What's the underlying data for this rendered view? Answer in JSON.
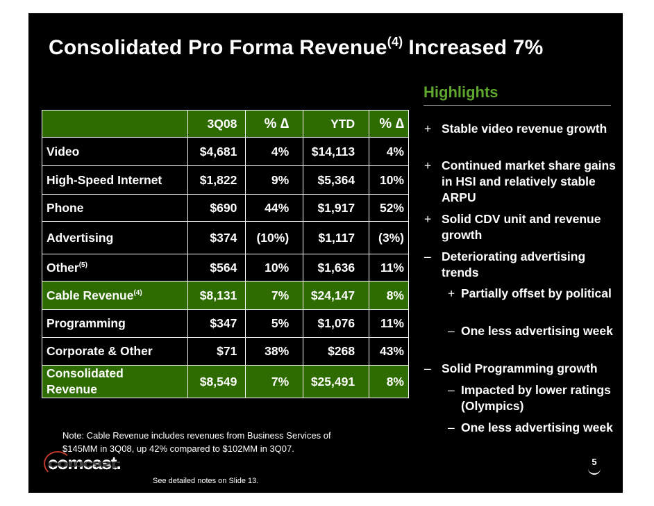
{
  "title": {
    "part1": "Consolidated Pro Forma Revenue",
    "sup": "(4)",
    "part2": "Increased 7%"
  },
  "table": {
    "headers": {
      "c1": "3Q08",
      "c2": "% ∆",
      "c3": "YTD",
      "c4": "% ∆"
    },
    "rows": [
      {
        "label": "Video",
        "sup": "",
        "c1": "$4,681",
        "c2": "4%",
        "c3": "$14,113",
        "c4": "4%"
      },
      {
        "label": "High-Speed Internet",
        "sup": "",
        "c1": "$1,822",
        "c2": "9%",
        "c3": "$5,364",
        "c4": "10%"
      },
      {
        "label": "Phone",
        "sup": "",
        "c1": "$690",
        "c2": "44%",
        "c3": "$1,917",
        "c4": "52%"
      },
      {
        "label": "Advertising",
        "sup": "",
        "c1": "$374",
        "c2": "(10%)",
        "c3": "$1,117",
        "c4": "(3%)"
      },
      {
        "label": "Other",
        "sup": "(5)",
        "c1": "$564",
        "c2": "10%",
        "c3": "$1,636",
        "c4": "11%"
      },
      {
        "label": "Cable Revenue",
        "sup": "(4)",
        "c1": "$8,131",
        "c2": "7%",
        "c3": "$24,147",
        "c4": "8%"
      },
      {
        "label": "Programming",
        "sup": "",
        "c1": "$347",
        "c2": "5%",
        "c3": "$1,076",
        "c4": "11%"
      },
      {
        "label": "Corporate & Other",
        "sup": "",
        "c1": "$71",
        "c2": "38%",
        "c3": "$268",
        "c4": "43%"
      },
      {
        "label": "Consolidated",
        "label2": "Revenue",
        "sup": "",
        "c1": "$8,549",
        "c2": "7%",
        "c3": "$25,491",
        "c4": "8%"
      }
    ]
  },
  "highlights": {
    "heading": "Highlights",
    "items": [
      {
        "marker": "+",
        "text": "Stable video revenue growth"
      },
      {
        "marker": "+",
        "text": "Continued market share gains in HSI and relatively stable ARPU"
      },
      {
        "marker": "+",
        "text": "Solid CDV unit and revenue growth"
      },
      {
        "marker": "–",
        "text": "Deteriorating advertising trends"
      },
      {
        "marker": "+",
        "text": "Partially offset by political"
      },
      {
        "marker": "–",
        "text": "One less advertising week"
      },
      {
        "marker": "–",
        "text": "Solid Programming growth"
      },
      {
        "marker": "–",
        "text": "Impacted by lower ratings (Olympics)"
      },
      {
        "marker": "–",
        "text": "One less advertising week"
      }
    ]
  },
  "note": {
    "line1": "Note: Cable Revenue includes revenues from Business Services of",
    "line2": "$145MM in 3Q08, up 42% compared to $102MM in 3Q07."
  },
  "footer_note": "See detailed notes on Slide 13.",
  "logo": {
    "text": "comcast."
  },
  "page_number": "5",
  "colors": {
    "background": "#000000",
    "accent_green": "#2e6b00",
    "heading_green": "#5fa62e",
    "text": "#ffffff"
  }
}
